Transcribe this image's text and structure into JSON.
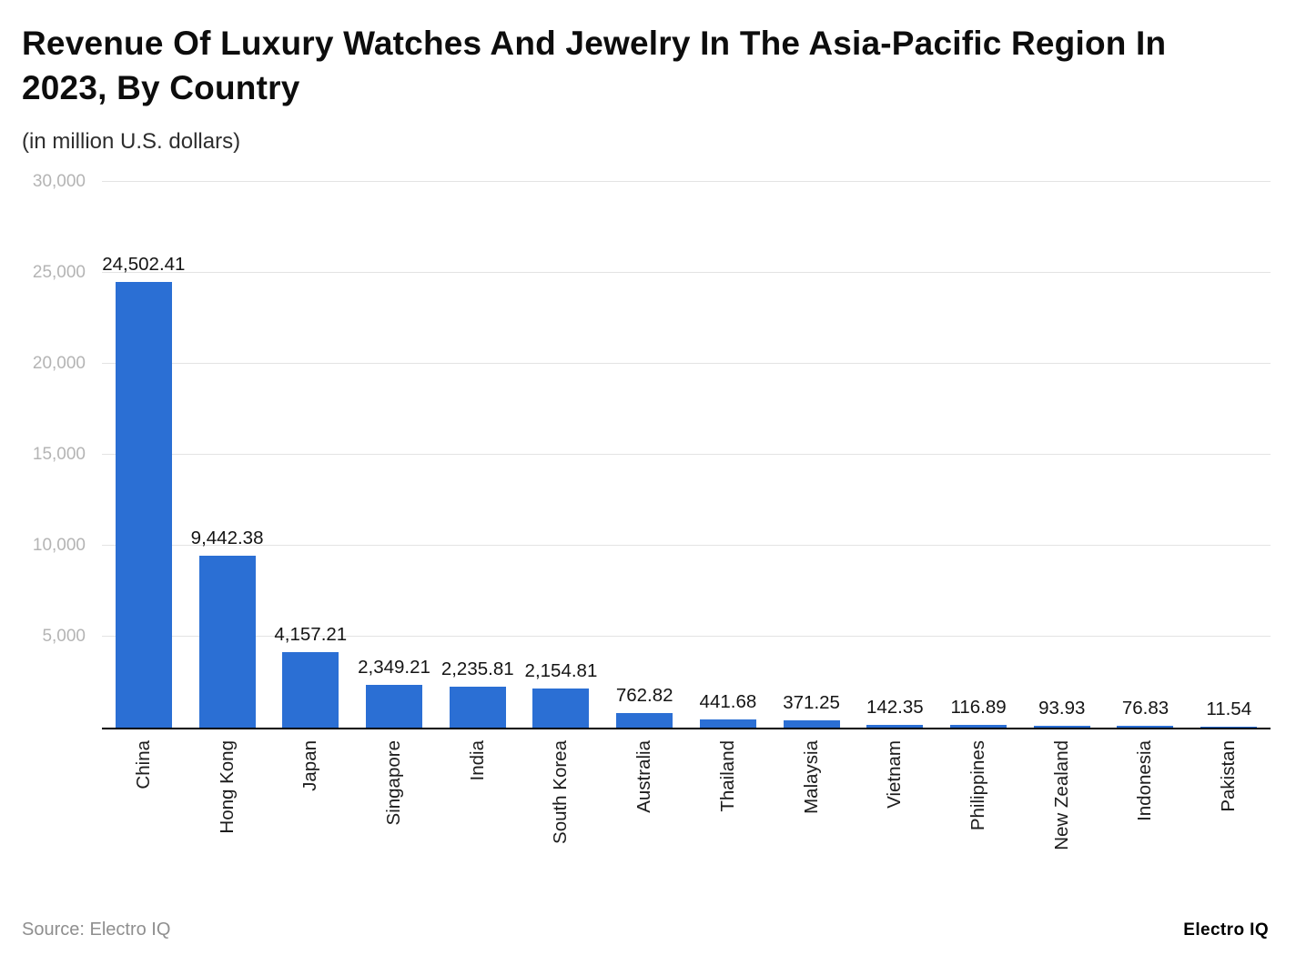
{
  "header": {
    "title": "Revenue Of Luxury Watches And Jewelry In The Asia-Pacific Region In 2023, By Country",
    "subtitle": "(in million U.S. dollars)"
  },
  "footer": {
    "source": "Source: Electro IQ",
    "brand": "Electro IQ"
  },
  "chart_data": {
    "type": "bar",
    "title": "Revenue Of Luxury Watches And Jewelry In The Asia-Pacific Region In 2023, By Country",
    "subtitle": "(in million U.S. dollars)",
    "categories": [
      "China",
      "Hong Kong",
      "Japan",
      "Singapore",
      "India",
      "South Korea",
      "Australia",
      "Thailand",
      "Malaysia",
      "Vietnam",
      "Philippines",
      "New Zealand",
      "Indonesia",
      "Pakistan"
    ],
    "values": [
      24502.41,
      9442.38,
      4157.21,
      2349.21,
      2235.81,
      2154.81,
      762.82,
      441.68,
      371.25,
      142.35,
      116.89,
      93.93,
      76.83,
      11.54
    ],
    "value_labels": [
      "24,502.41",
      "9,442.38",
      "4,157.21",
      "2,349.21",
      "2,235.81",
      "2,154.81",
      "762.82",
      "441.68",
      "371.25",
      "142.35",
      "116.89",
      "93.93",
      "76.83",
      "11.54"
    ],
    "xlabel": "",
    "ylabel": "",
    "ylim": [
      0,
      30000
    ],
    "yticks": [
      5000,
      10000,
      15000,
      20000,
      25000,
      30000
    ],
    "ytick_labels": [
      "5,000",
      "10,000",
      "15,000",
      "20,000",
      "25,000",
      "30,000"
    ],
    "bar_color": "#2b6fd4",
    "grid": true,
    "legend": "none"
  }
}
